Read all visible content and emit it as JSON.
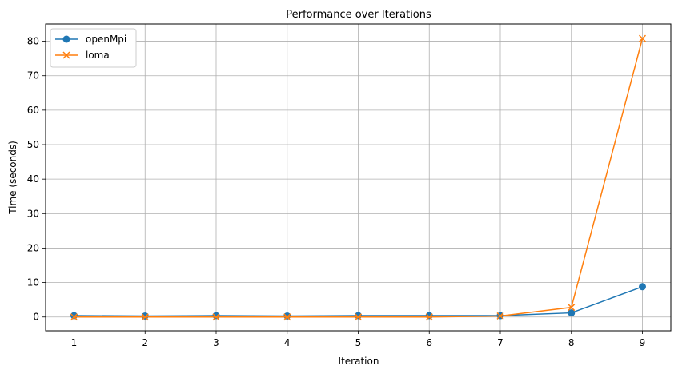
{
  "chart_data": {
    "type": "line",
    "title": "Performance over Iterations",
    "xlabel": "Iteration",
    "ylabel": "Time (seconds)",
    "x": [
      1,
      2,
      3,
      4,
      5,
      6,
      7,
      8,
      9
    ],
    "xlim": [
      0.6,
      9.4
    ],
    "ylim": [
      -4,
      85
    ],
    "xticks": [
      1,
      2,
      3,
      4,
      5,
      6,
      7,
      8,
      9
    ],
    "yticks": [
      0,
      10,
      20,
      30,
      40,
      50,
      60,
      70,
      80
    ],
    "grid": true,
    "legend_position": "upper-left",
    "series": [
      {
        "name": "openMpi",
        "color": "#1f77b4",
        "marker": "circle",
        "values": [
          0.4,
          0.3,
          0.4,
          0.3,
          0.4,
          0.4,
          0.4,
          1.2,
          8.8
        ]
      },
      {
        "name": "loma",
        "color": "#ff7f0e",
        "marker": "x",
        "values": [
          0.0,
          0.0,
          0.0,
          0.0,
          0.0,
          0.0,
          0.3,
          2.8,
          80.8
        ]
      }
    ]
  }
}
